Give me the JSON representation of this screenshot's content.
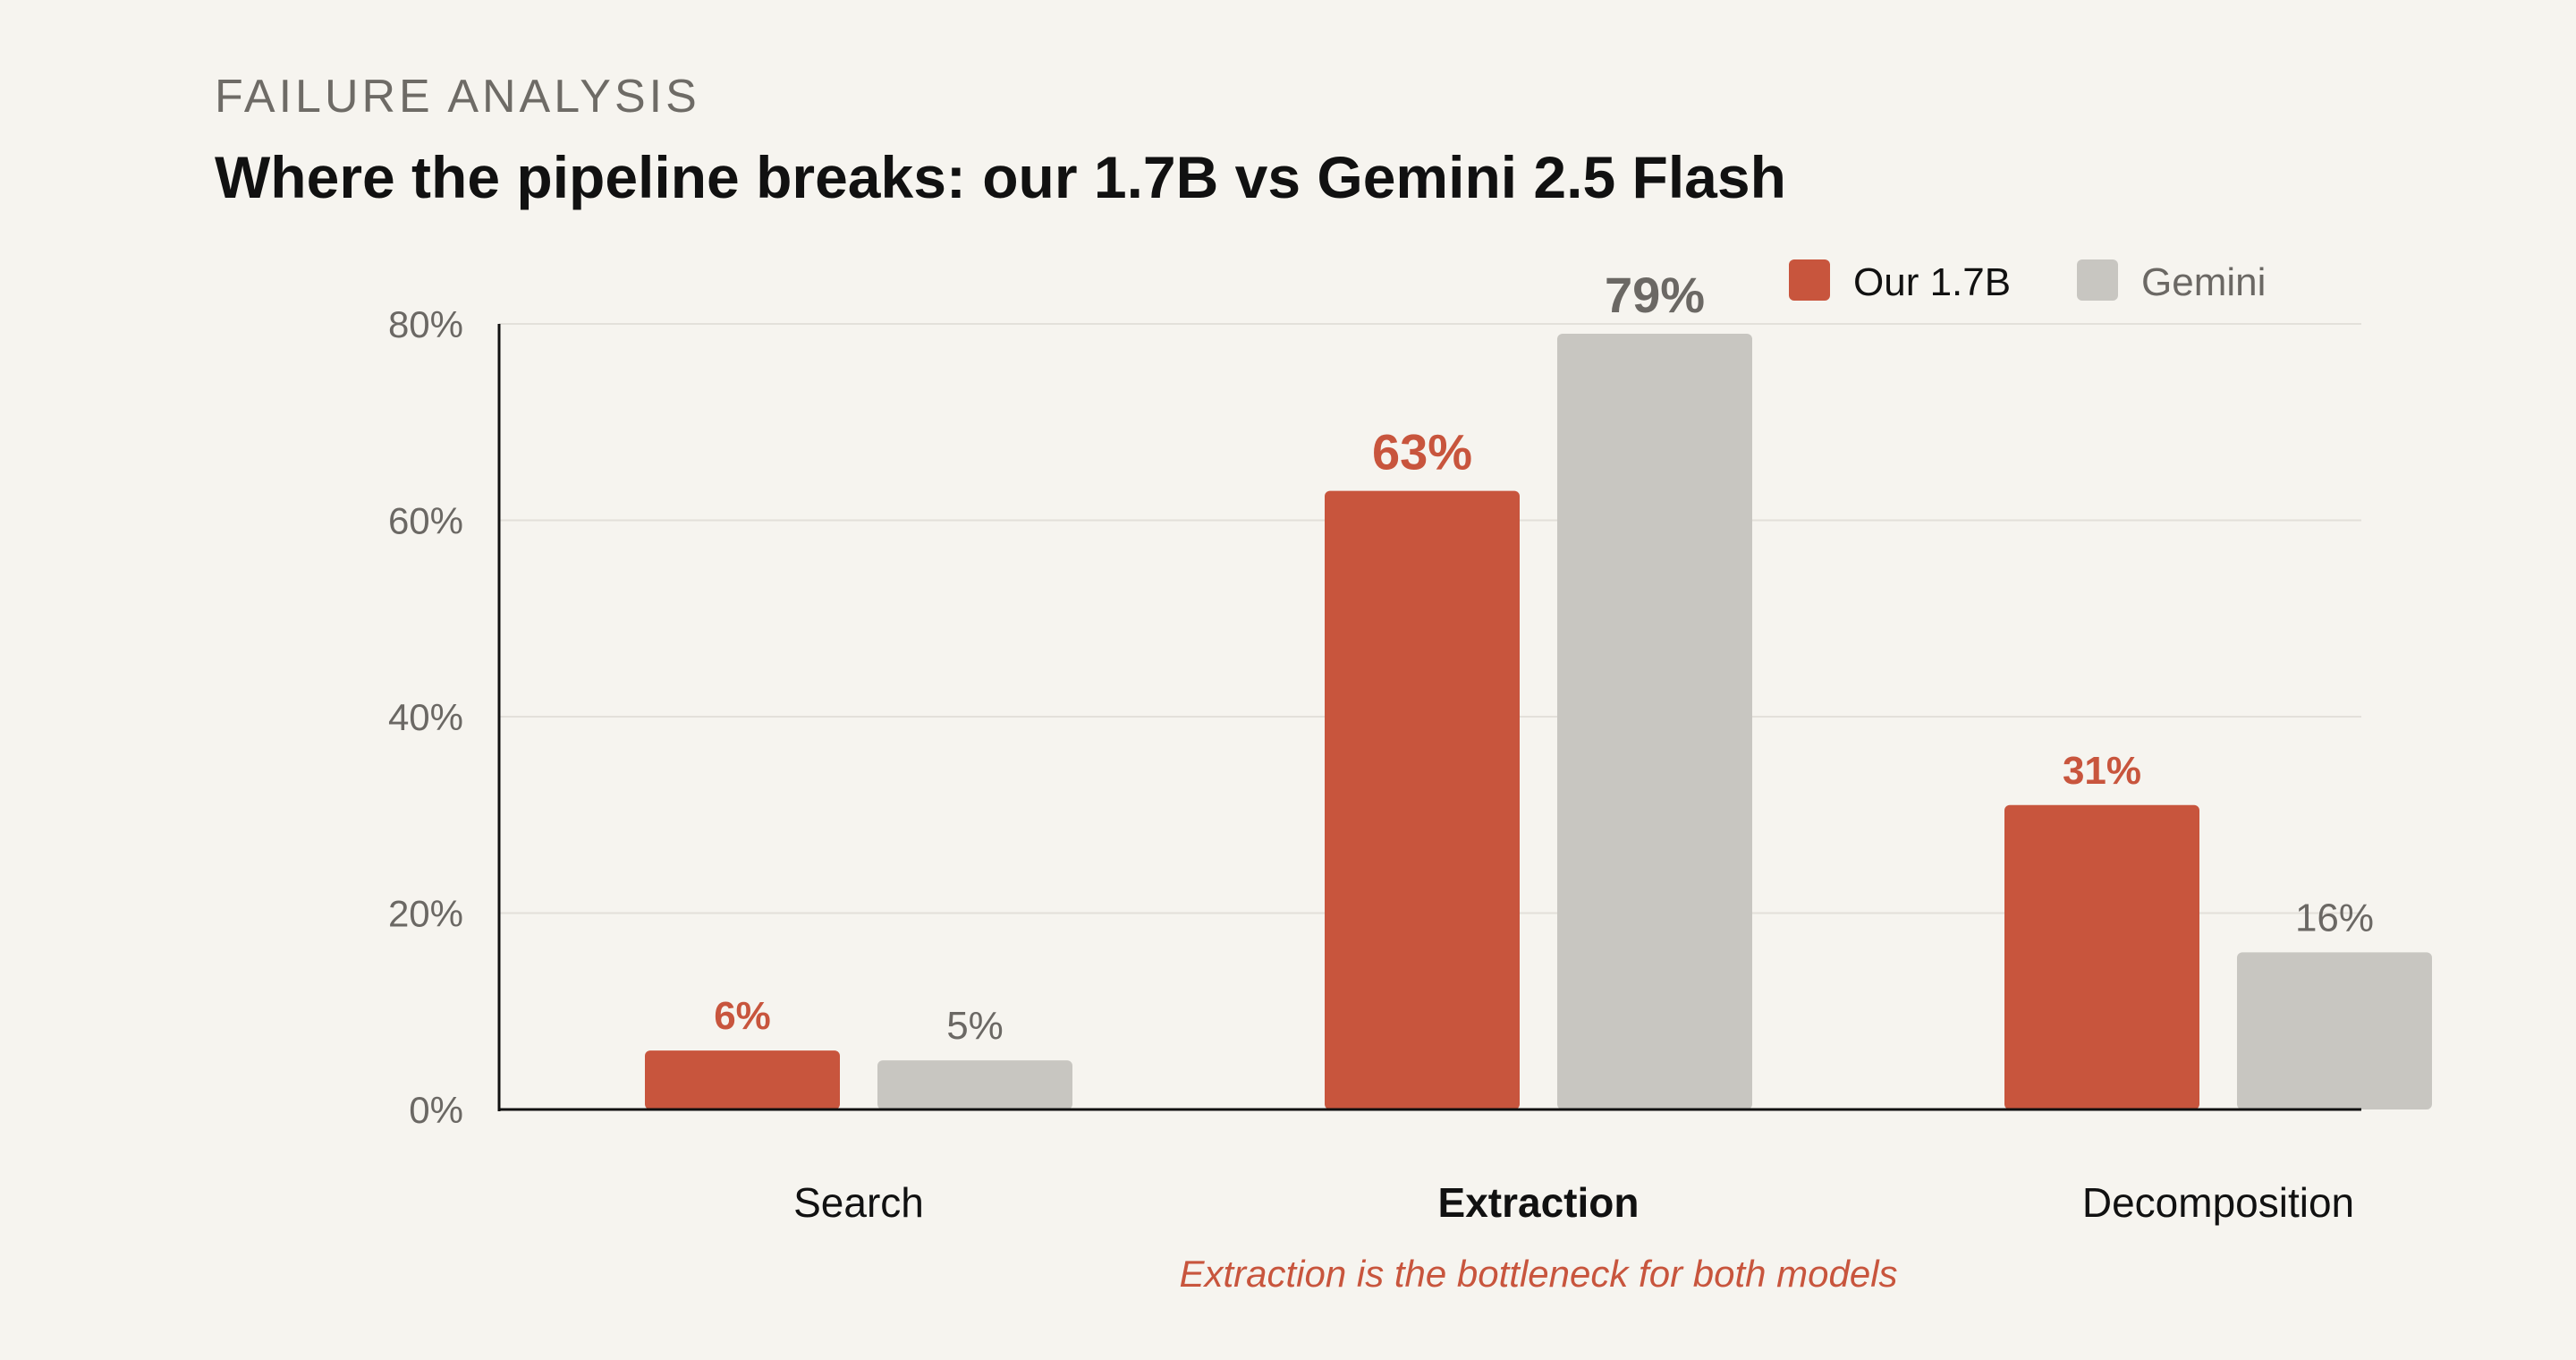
{
  "header": {
    "eyebrow": "FAILURE ANALYSIS",
    "title": "Where the pipeline breaks: our 1.7B vs Gemini 2.5 Flash"
  },
  "colors": {
    "ours": "#c8553d",
    "gemini": "#c8c6c1",
    "axis": "#111111",
    "grid": "#e3e0da",
    "muted_text": "#6b6864"
  },
  "chart_data": {
    "type": "bar",
    "categories": [
      "Search",
      "Extraction",
      "Decomposition"
    ],
    "emphasized_category": "Extraction",
    "series": [
      {
        "name": "Our 1.7B",
        "values": [
          6,
          63,
          31
        ],
        "labels": [
          "6%",
          "63%",
          "31%"
        ]
      },
      {
        "name": "Gemini",
        "values": [
          5,
          79,
          16
        ],
        "labels": [
          "5%",
          "79%",
          "16%"
        ]
      }
    ],
    "y_ticks": [
      0,
      20,
      40,
      60,
      80
    ],
    "y_tick_labels": [
      "0%",
      "20%",
      "40%",
      "60%",
      "80%"
    ],
    "ylim": [
      0,
      80
    ],
    "grid": true,
    "legend_position": "top-right",
    "annotation": "Extraction is the bottleneck for both models"
  }
}
